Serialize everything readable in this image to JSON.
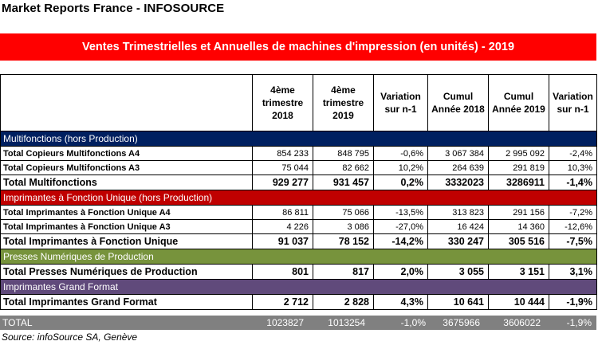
{
  "header": {
    "title": "Market Reports France - INFOSOURCE"
  },
  "banner": {
    "title": "Ventes Trimestrielles et Annuelles de machines d'impression (en unités) - 2019"
  },
  "columns": [
    "4ème trimestre 2018",
    "4ème trimestre 2019",
    "Variation sur n-1",
    "Cumul Année 2018",
    "Cumul Année 2019",
    "Variation sur n-1"
  ],
  "sections": [
    {
      "name": "Multifonctions  (hors Production)",
      "color": "#002060",
      "rows": [
        {
          "label": "Total Copieurs Multifonctions A4",
          "values": [
            "854 233",
            "848 795",
            "-0,6%",
            "3 067 384",
            "2 995 092",
            "-2,4%"
          ],
          "kind": "detail"
        },
        {
          "label": "Total Copieurs Multifonctions A3",
          "values": [
            "75 044",
            "82 662",
            "10,2%",
            "264 639",
            "291 819",
            "10,3%"
          ],
          "kind": "detail"
        },
        {
          "label": "Total Multifonctions",
          "values": [
            "929 277",
            "931 457",
            "0,2%",
            "3332023",
            "3286911",
            "-1,4%"
          ],
          "kind": "total"
        }
      ]
    },
    {
      "name": "Imprimantes à Fonction Unique  (hors Production)",
      "color": "#c00000",
      "rows": [
        {
          "label": "Total Imprimantes à Fonction Unique A4",
          "values": [
            "86 811",
            "75 066",
            "-13,5%",
            "313 823",
            "291 156",
            "-7,2%"
          ],
          "kind": "detail"
        },
        {
          "label": "Total Imprimantes à Fonction Unique A3",
          "values": [
            "4 226",
            "3 086",
            "-27,0%",
            "16 424",
            "14 360",
            "-12,6%"
          ],
          "kind": "detail"
        },
        {
          "label": "Total Imprimantes à Fonction  Unique",
          "values": [
            "91 037",
            "78 152",
            "-14,2%",
            "330 247",
            "305 516",
            "-7,5%"
          ],
          "kind": "total"
        }
      ]
    },
    {
      "name": "Presses Numériques de Production",
      "color": "#77933c",
      "rows": [
        {
          "label": "Total Presses Numériques de Production",
          "values": [
            "801",
            "817",
            "2,0%",
            "3 055",
            "3 151",
            "3,1%"
          ],
          "kind": "total"
        }
      ]
    },
    {
      "name": "Imprimantes Grand Format",
      "color": "#604a7b",
      "rows": [
        {
          "label": "Total Imprimantes Grand Format",
          "values": [
            "2 712",
            "2 828",
            "4,3%",
            "10 641",
            "10 444",
            "-1,9%"
          ],
          "kind": "total"
        }
      ]
    }
  ],
  "total": {
    "label": "TOTAL",
    "values": [
      "1023827",
      "1013254",
      "-1,0%",
      "3675966",
      "3606022",
      "-1,9%"
    ]
  },
  "source": "Source: infoSource SA, Genève"
}
